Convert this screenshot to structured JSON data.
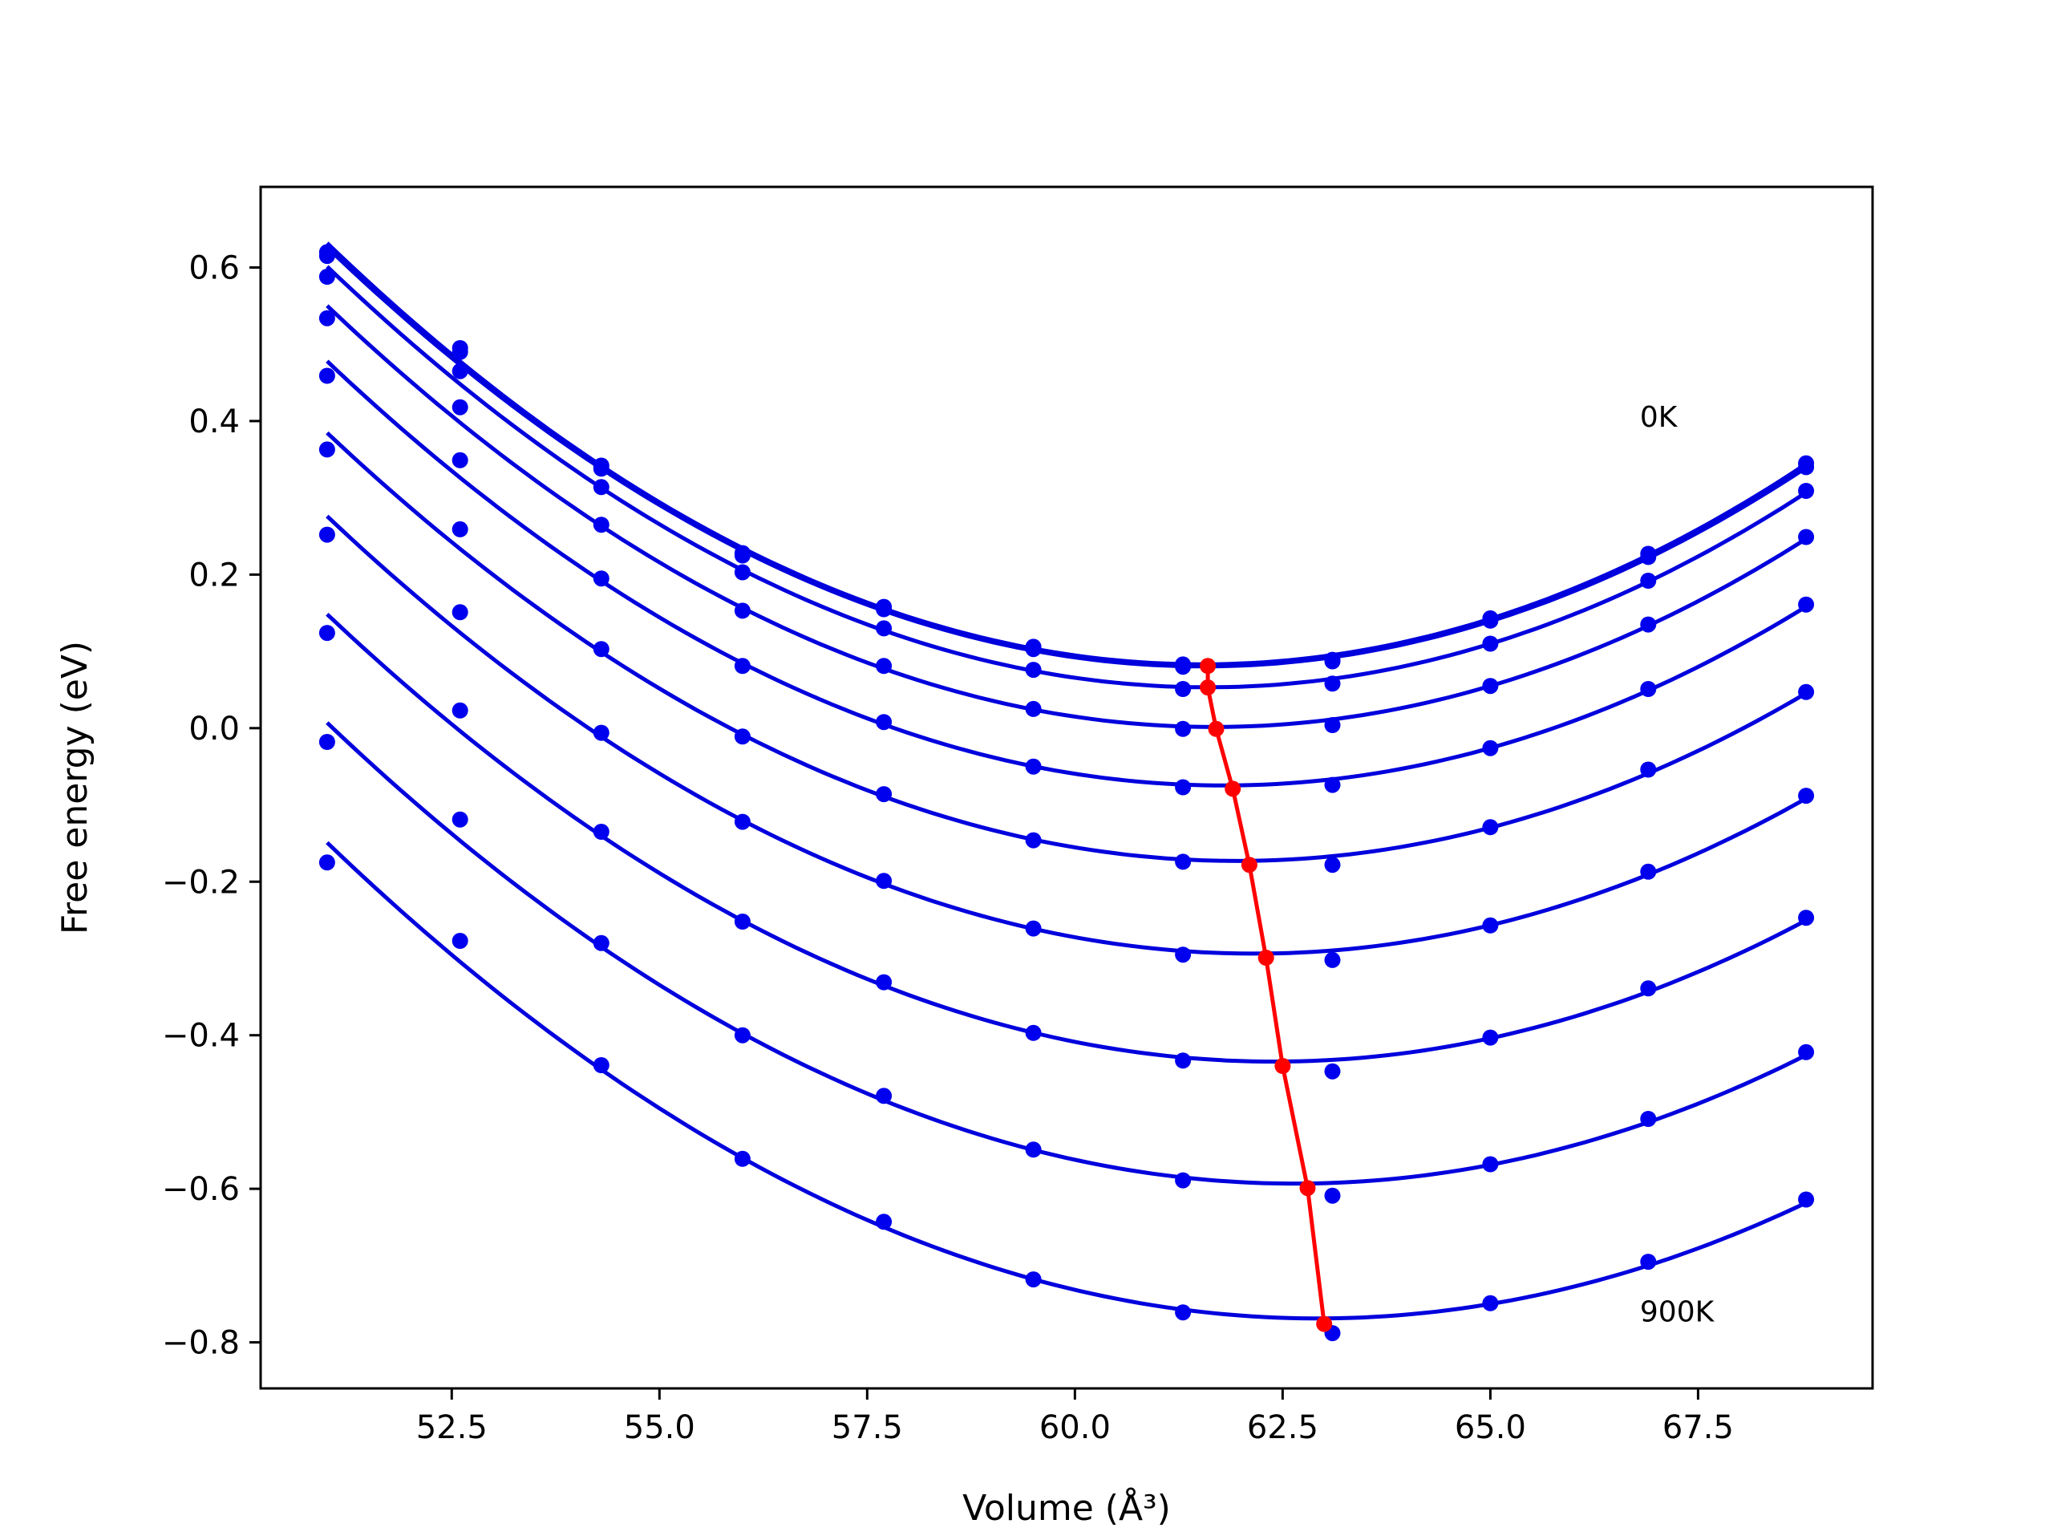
{
  "chart_data": {
    "type": "line",
    "title": "",
    "xlabel": "Volume (Å³)",
    "ylabel": "Free energy (eV)",
    "xlim": [
      50.2,
      69.6
    ],
    "ylim": [
      -0.86,
      0.705
    ],
    "xticks": [
      52.5,
      55.0,
      57.5,
      60.0,
      62.5,
      65.0,
      67.5
    ],
    "xtick_labels": [
      "52.5",
      "55.0",
      "57.5",
      "60.0",
      "62.5",
      "65.0",
      "67.5"
    ],
    "yticks": [
      -0.8,
      -0.6,
      -0.4,
      -0.2,
      0.0,
      0.2,
      0.4,
      0.6
    ],
    "ytick_labels": [
      "−0.8",
      "−0.6",
      "−0.4",
      "−0.2",
      "0.0",
      "0.2",
      "0.4",
      "0.6"
    ],
    "grid": false,
    "colors": {
      "fit": "#0000dd",
      "points": "#0000ee",
      "minima": "#ff0000"
    },
    "x_points": [
      51.0,
      52.6,
      54.3,
      56.0,
      57.7,
      59.5,
      61.3,
      63.1,
      65.0,
      66.9,
      68.8
    ],
    "series": [
      {
        "values": [
          0.62,
          0.495,
          0.342,
          0.228,
          0.158,
          0.106,
          0.083,
          0.089,
          0.143,
          0.227,
          0.345
        ]
      },
      {
        "values": [
          0.615,
          0.49,
          0.338,
          0.225,
          0.155,
          0.103,
          0.08,
          0.087,
          0.14,
          0.223,
          0.34
        ]
      },
      {
        "values": [
          0.588,
          0.465,
          0.314,
          0.203,
          0.13,
          0.076,
          0.051,
          0.058,
          0.11,
          0.192,
          0.309
        ]
      },
      {
        "values": [
          0.534,
          0.418,
          0.265,
          0.153,
          0.081,
          0.025,
          -0.001,
          0.004,
          0.055,
          0.135,
          0.249
        ]
      },
      {
        "values": [
          0.459,
          0.349,
          0.195,
          0.081,
          0.008,
          -0.05,
          -0.077,
          -0.074,
          -0.026,
          0.051,
          0.161
        ]
      },
      {
        "values": [
          0.363,
          0.259,
          0.103,
          -0.011,
          -0.086,
          -0.146,
          -0.174,
          -0.178,
          -0.129,
          -0.054,
          0.047
        ]
      },
      {
        "values": [
          0.252,
          0.151,
          -0.006,
          -0.122,
          -0.199,
          -0.261,
          -0.295,
          -0.302,
          -0.257,
          -0.187,
          -0.088
        ]
      },
      {
        "values": [
          0.124,
          0.023,
          -0.135,
          -0.252,
          -0.331,
          -0.397,
          -0.433,
          -0.447,
          -0.403,
          -0.339,
          -0.247
        ]
      },
      {
        "values": [
          -0.018,
          -0.119,
          -0.28,
          -0.4,
          -0.479,
          -0.549,
          -0.589,
          -0.609,
          -0.568,
          -0.509,
          -0.422
        ]
      },
      {
        "values": [
          -0.175,
          -0.277,
          -0.439,
          -0.561,
          -0.643,
          -0.718,
          -0.761,
          -0.788,
          -0.749,
          -0.695,
          -0.614
        ]
      }
    ],
    "minima": {
      "x": [
        61.6,
        61.6,
        61.7,
        61.9,
        62.1,
        62.3,
        62.5,
        62.8,
        63.0
      ],
      "y": [
        0.081,
        0.053,
        -0.001,
        -0.079,
        -0.178,
        -0.299,
        -0.44,
        -0.599,
        -0.776
      ]
    },
    "annotations": [
      {
        "text": "0K",
        "x": 66.8,
        "y": 0.405
      },
      {
        "text": "900K",
        "x": 66.8,
        "y": -0.76
      }
    ]
  }
}
